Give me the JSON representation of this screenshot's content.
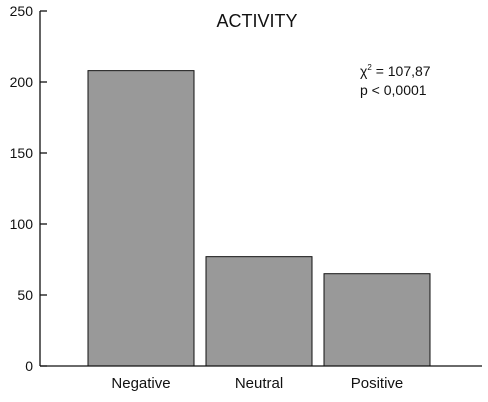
{
  "chart_data": {
    "type": "bar",
    "title": "ACTIVITY",
    "categories": [
      "Negative",
      "Neutral",
      "Positive"
    ],
    "values": [
      208,
      77,
      65
    ],
    "ylim": [
      0,
      250
    ],
    "yticks": [
      0,
      50,
      100,
      150,
      200,
      250
    ],
    "xlabel": "",
    "ylabel": "",
    "bar_color": "#999999",
    "grid": false,
    "legend": "none",
    "annotation": {
      "stat_symbol": "χ",
      "stat_exponent": "2",
      "stat_value": " = 107,87",
      "p_value": "p < 0,0001"
    }
  }
}
